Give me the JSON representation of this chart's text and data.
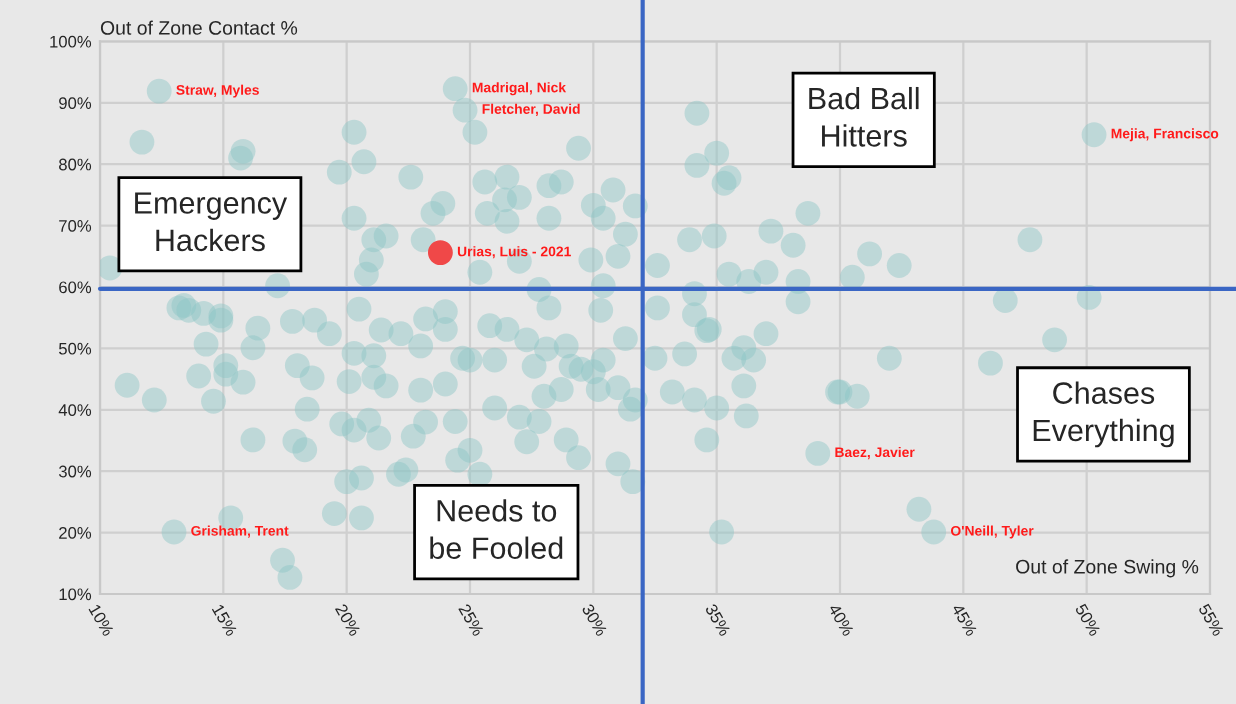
{
  "chart_data": {
    "type": "scatter",
    "xlabel": "Out of Zone Swing %",
    "ylabel": "Out of Zone Contact %",
    "xlim": [
      10,
      55
    ],
    "ylim": [
      10,
      100
    ],
    "xticks": [
      {
        "value": 10,
        "label": "10%"
      },
      {
        "value": 15,
        "label": "15%"
      },
      {
        "value": 20,
        "label": "20%"
      },
      {
        "value": 25,
        "label": "25%"
      },
      {
        "value": 30,
        "label": "30%"
      },
      {
        "value": 35,
        "label": "35%"
      },
      {
        "value": 40,
        "label": "40%"
      },
      {
        "value": 45,
        "label": "45%"
      },
      {
        "value": 50,
        "label": "50%"
      },
      {
        "value": 55,
        "label": "55%"
      }
    ],
    "yticks": [
      {
        "value": 10,
        "label": "10%"
      },
      {
        "value": 20,
        "label": "20%"
      },
      {
        "value": 30,
        "label": "30%"
      },
      {
        "value": 40,
        "label": "40%"
      },
      {
        "value": 50,
        "label": "50%"
      },
      {
        "value": 60,
        "label": "60%"
      },
      {
        "value": 70,
        "label": "70%"
      },
      {
        "value": 80,
        "label": "80%"
      },
      {
        "value": 90,
        "label": "90%"
      },
      {
        "value": 100,
        "label": "100%"
      }
    ],
    "grid": true,
    "legend": false,
    "marker": "circle",
    "ref_lines": [
      {
        "axis": "x",
        "value": 32,
        "color": "#3a66c4"
      },
      {
        "axis": "y",
        "value": 59.7,
        "color": "#3a66c4"
      }
    ],
    "series": [
      {
        "color": "#8cc6c6",
        "x": [
          12.4,
          24.4,
          24.8,
          50.3,
          39.1,
          43.8,
          13.0,
          11.7,
          20.3,
          15.8,
          15.7,
          20.7,
          19.7,
          22.6,
          23.9,
          23.5,
          20.3,
          21.1,
          21.6,
          23.1,
          21.0,
          10.4,
          24.0,
          20.8,
          17.2,
          13.4,
          14.9,
          34.2,
          25.2,
          29.4,
          34.2,
          35.0,
          35.5,
          35.3,
          25.6,
          26.5,
          28.7,
          28.2,
          30.8,
          31.7,
          27.0,
          26.4,
          30.0,
          30.4,
          28.2,
          26.5,
          25.7,
          38.7,
          37.2,
          38.1,
          33.9,
          34.9,
          31.3,
          31.0,
          29.9,
          32.6,
          27.0,
          25.4,
          35.5,
          36.3,
          37.0,
          38.3,
          27.8,
          30.4,
          34.1,
          38.3,
          28.2,
          41.2,
          40.5,
          42.4,
          47.7,
          46.7,
          50.1,
          48.7,
          46.1,
          42.0,
          40.0,
          40.7,
          43.2,
          34.6,
          35.7,
          36.5,
          36.1,
          37.0,
          33.7,
          32.5,
          33.2,
          34.1,
          35.0,
          36.2,
          36.1,
          34.6,
          39.9,
          35.2,
          31.7,
          31.5,
          31.6,
          31.0,
          29.4,
          28.9,
          27.3,
          25.4,
          25.0,
          26.0,
          27.8,
          27.0,
          28.0,
          28.7,
          30.2,
          31.0,
          29.5,
          30.0,
          30.4,
          29.1,
          28.9,
          28.1,
          27.3,
          26.5,
          25.8,
          26.0,
          27.6,
          30.3,
          31.3,
          25.0,
          32.6,
          34.1,
          34.7,
          11.1,
          13.2,
          14.2,
          14.9,
          16.4,
          16.2,
          18.7,
          17.8,
          19.3,
          15.1,
          15.1,
          15.8,
          14.6,
          18.0,
          18.6,
          18.4,
          16.2,
          17.9,
          18.3,
          19.8,
          20.3,
          20.9,
          21.3,
          20.0,
          20.6,
          19.5,
          20.6,
          17.4,
          17.7,
          15.3,
          20.1,
          21.1,
          21.6,
          23.0,
          22.7,
          23.2,
          24.0,
          24.4,
          24.5,
          22.1,
          22.4,
          20.3,
          21.1,
          23.0,
          20.5,
          21.4,
          22.2,
          23.2,
          24.0,
          24.7,
          13.6,
          14.0,
          14.3,
          12.2
        ],
        "values": [
          91.9,
          92.3,
          88.8,
          84.8,
          32.9,
          20.1,
          20.1,
          83.6,
          85.2,
          82.1,
          81.0,
          80.4,
          78.7,
          77.9,
          73.6,
          72.0,
          71.2,
          67.7,
          68.3,
          67.7,
          64.4,
          63.1,
          56.0,
          62.1,
          60.2,
          57.0,
          55.3,
          88.3,
          85.2,
          82.6,
          79.8,
          81.8,
          77.8,
          76.9,
          77.1,
          77.9,
          77.1,
          76.5,
          75.8,
          73.2,
          74.6,
          74.2,
          73.3,
          71.2,
          71.2,
          70.7,
          72.0,
          72.0,
          69.1,
          66.8,
          67.7,
          68.3,
          68.6,
          65.0,
          64.4,
          63.5,
          64.2,
          62.4,
          62.1,
          60.9,
          62.4,
          60.9,
          59.6,
          60.2,
          58.9,
          57.6,
          56.6,
          65.4,
          61.6,
          63.5,
          67.7,
          57.8,
          58.3,
          51.4,
          47.6,
          48.4,
          42.9,
          42.2,
          23.8,
          52.9,
          48.4,
          48.1,
          50.1,
          52.4,
          49.1,
          48.4,
          42.9,
          41.6,
          40.3,
          39.0,
          43.9,
          35.1,
          42.9,
          20.1,
          41.6,
          40.1,
          28.3,
          31.2,
          32.2,
          35.1,
          34.8,
          29.5,
          33.4,
          40.3,
          38.1,
          38.8,
          42.2,
          43.3,
          43.3,
          43.6,
          46.6,
          46.2,
          48.1,
          47.1,
          50.4,
          49.9,
          51.4,
          53.1,
          53.7,
          48.1,
          47.1,
          56.2,
          51.6,
          48.1,
          56.6,
          55.5,
          53.1,
          44.0,
          56.6,
          55.7,
          54.6,
          53.3,
          50.1,
          54.6,
          54.4,
          52.4,
          47.2,
          45.8,
          44.5,
          41.4,
          47.2,
          45.2,
          40.1,
          35.1,
          34.9,
          33.5,
          37.7,
          36.7,
          38.3,
          35.4,
          28.3,
          28.9,
          23.1,
          22.4,
          15.5,
          12.7,
          22.4,
          44.6,
          45.3,
          43.9,
          43.2,
          35.7,
          38.0,
          44.2,
          38.1,
          31.8,
          29.5,
          30.2,
          49.2,
          48.8,
          50.4,
          56.4,
          53.0,
          52.4,
          54.8,
          53.1,
          48.4,
          56.2,
          45.5,
          50.7,
          41.6
        ]
      },
      {
        "color": "#f04848",
        "x": [
          23.8
        ],
        "values": [
          65.6
        ]
      }
    ],
    "annotations": [
      {
        "text": "Straw, Myles",
        "x": 12.4,
        "y": 91.9
      },
      {
        "text": "Madrigal, Nick",
        "x": 24.4,
        "y": 92.3
      },
      {
        "text": "Fletcher, David",
        "x": 24.8,
        "y": 88.8
      },
      {
        "text": "Mejia, Francisco",
        "x": 50.3,
        "y": 84.8
      },
      {
        "text": "Urias, Luis - 2021",
        "x": 23.8,
        "y": 65.6
      },
      {
        "text": "Baez, Javier",
        "x": 39.1,
        "y": 32.9
      },
      {
        "text": "O'Neill, Tyler",
        "x": 43.8,
        "y": 20.1
      },
      {
        "text": "Grisham, Trent",
        "x": 13.0,
        "y": 20.1
      },
      "Emergency\nHackers",
      "Bad Ball\nHitters",
      "Chases\nEverything",
      "Needs to\nbe Fooled"
    ]
  }
}
